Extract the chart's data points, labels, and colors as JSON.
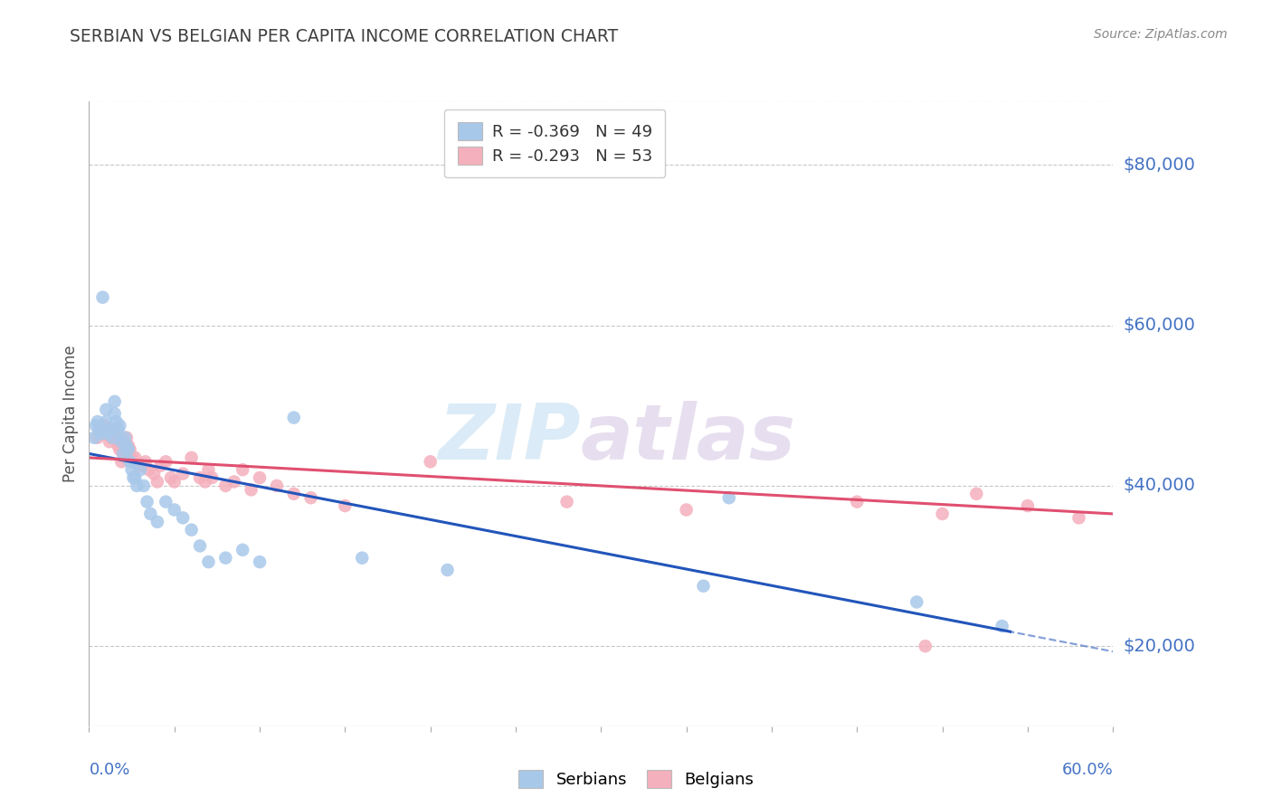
{
  "title": "SERBIAN VS BELGIAN PER CAPITA INCOME CORRELATION CHART",
  "source": "Source: ZipAtlas.com",
  "ylabel": "Per Capita Income",
  "xlim": [
    0.0,
    0.6
  ],
  "ylim": [
    10000,
    88000
  ],
  "yticks": [
    20000,
    40000,
    60000,
    80000
  ],
  "ytick_labels": [
    "$20,000",
    "$40,000",
    "$60,000",
    "$80,000"
  ],
  "grid_color": "#c8c8c8",
  "background_color": "#ffffff",
  "title_color": "#404040",
  "axis_label_color": "#4472c4",
  "serbian_color": "#a8c8ea",
  "belgian_color": "#f4b0bc",
  "serbian_line_color": "#2255bb",
  "belgian_line_color": "#e05070",
  "legend_serbian": "R = -0.369   N = 49",
  "legend_belgian": "R = -0.293   N = 53",
  "serbians_x": [
    0.003,
    0.004,
    0.005,
    0.006,
    0.007,
    0.008,
    0.009,
    0.01,
    0.01,
    0.011,
    0.012,
    0.013,
    0.014,
    0.015,
    0.015,
    0.016,
    0.017,
    0.018,
    0.019,
    0.02,
    0.021,
    0.022,
    0.023,
    0.024,
    0.025,
    0.026,
    0.027,
    0.028,
    0.03,
    0.032,
    0.034,
    0.036,
    0.04,
    0.045,
    0.05,
    0.055,
    0.06,
    0.065,
    0.07,
    0.08,
    0.09,
    0.1,
    0.12,
    0.16,
    0.21,
    0.36,
    0.375,
    0.485,
    0.535
  ],
  "serbians_y": [
    46000,
    47500,
    48000,
    47000,
    46500,
    63500,
    47000,
    49500,
    48000,
    46500,
    47000,
    47000,
    46000,
    50500,
    49000,
    48000,
    47000,
    47500,
    45500,
    44000,
    46000,
    45000,
    44500,
    43000,
    42000,
    41000,
    41000,
    40000,
    42000,
    40000,
    38000,
    36500,
    35500,
    38000,
    37000,
    36000,
    34500,
    32500,
    30500,
    31000,
    32000,
    30500,
    48500,
    31000,
    29500,
    27500,
    38500,
    25500,
    22500
  ],
  "belgians_x": [
    0.005,
    0.007,
    0.009,
    0.011,
    0.012,
    0.013,
    0.014,
    0.015,
    0.016,
    0.017,
    0.018,
    0.019,
    0.02,
    0.021,
    0.022,
    0.023,
    0.024,
    0.025,
    0.027,
    0.029,
    0.031,
    0.033,
    0.035,
    0.038,
    0.04,
    0.042,
    0.045,
    0.048,
    0.05,
    0.055,
    0.06,
    0.065,
    0.068,
    0.07,
    0.072,
    0.08,
    0.085,
    0.09,
    0.095,
    0.1,
    0.11,
    0.12,
    0.13,
    0.15,
    0.2,
    0.28,
    0.35,
    0.45,
    0.49,
    0.5,
    0.52,
    0.55,
    0.58
  ],
  "belgians_y": [
    46000,
    47000,
    47500,
    47000,
    45500,
    46000,
    47000,
    46500,
    46000,
    45000,
    44500,
    43000,
    44000,
    43500,
    46000,
    45000,
    44500,
    43500,
    43500,
    42500,
    42500,
    43000,
    42000,
    41500,
    40500,
    42500,
    43000,
    41000,
    40500,
    41500,
    43500,
    41000,
    40500,
    42000,
    41000,
    40000,
    40500,
    42000,
    39500,
    41000,
    40000,
    39000,
    38500,
    37500,
    43000,
    38000,
    37000,
    38000,
    20000,
    36500,
    39000,
    37500,
    36000
  ]
}
